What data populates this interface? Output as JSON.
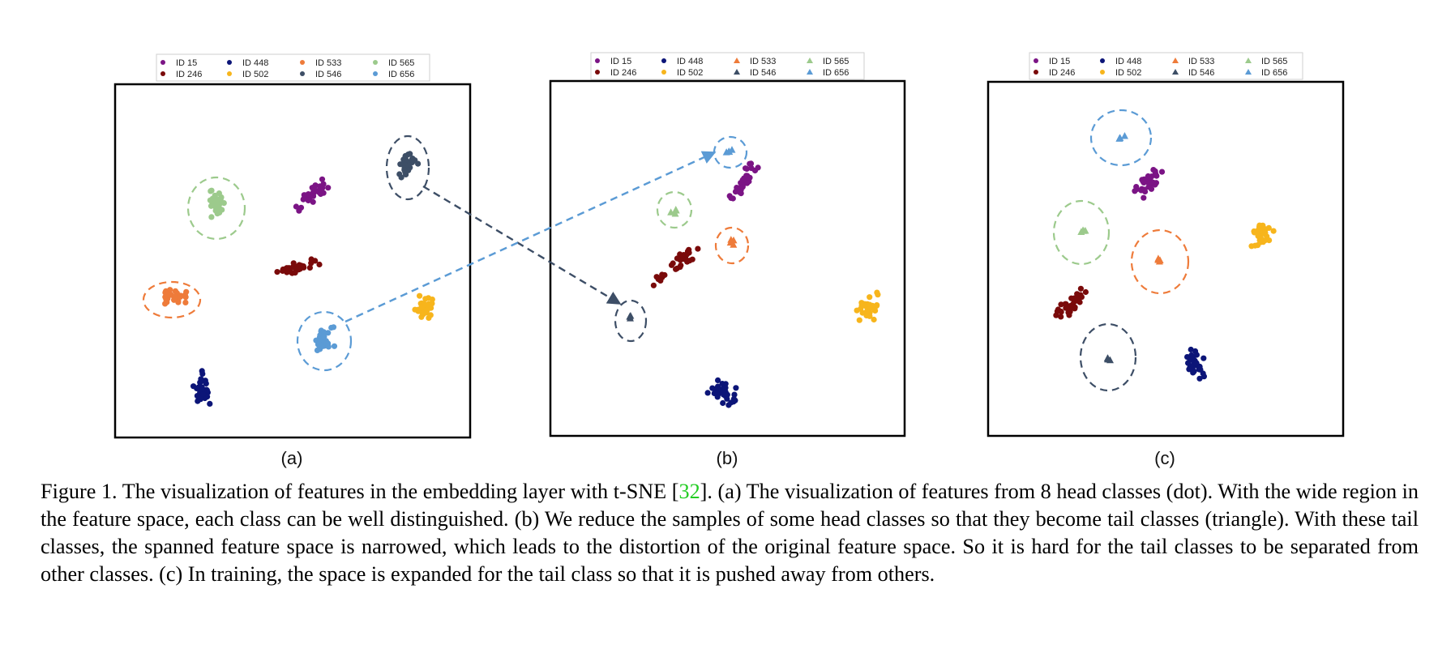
{
  "legend": [
    {
      "label": "ID 15",
      "color": "#7b1485",
      "tail": false
    },
    {
      "label": "ID 246",
      "color": "#7a0a0a",
      "tail": false
    },
    {
      "label": "ID 448",
      "color": "#0c1578",
      "tail": false
    },
    {
      "label": "ID 502",
      "color": "#f7b51c",
      "tail": false
    },
    {
      "label": "ID 533",
      "color": "#ee7b3a",
      "tail": true
    },
    {
      "label": "ID 546",
      "color": "#3d4e66",
      "tail": true
    },
    {
      "label": "ID 565",
      "color": "#9cca8c",
      "tail": true
    },
    {
      "label": "ID 656",
      "color": "#5b9bd5",
      "tail": true
    }
  ],
  "panels": [
    {
      "label": "(a)"
    },
    {
      "label": "(b)"
    },
    {
      "label": "(c)"
    }
  ],
  "caption": {
    "before_cite": "Figure 1. The visualization of features in the embedding layer with t-SNE [",
    "cite": "32",
    "after_cite": "]. (a) The visualization of features from 8 head classes (dot). With the wide region in the feature space, each class can be well distinguished. (b) We reduce the samples of some head classes so that they become tail classes (triangle). With these tail classes, the spanned feature space is narrowed, which leads to the distortion of the original feature space. So it is hard for the tail classes to be separated from other classes. (c) In training, the space is expanded for the tail class so that it is pushed away from others."
  }
}
